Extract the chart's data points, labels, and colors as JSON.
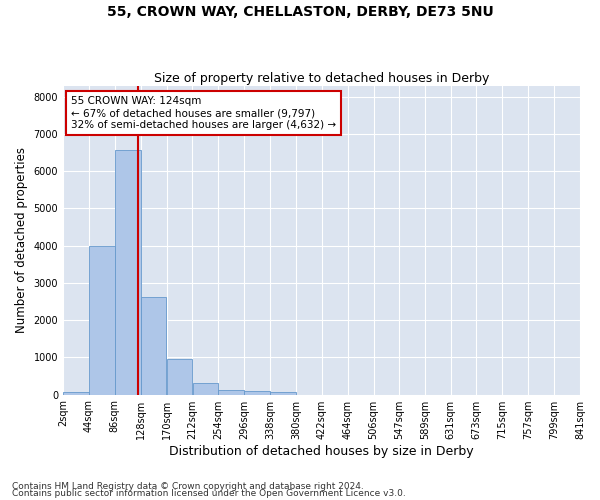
{
  "title": "55, CROWN WAY, CHELLASTON, DERBY, DE73 5NU",
  "subtitle": "Size of property relative to detached houses in Derby",
  "xlabel": "Distribution of detached houses by size in Derby",
  "ylabel": "Number of detached properties",
  "footnote1": "Contains HM Land Registry data © Crown copyright and database right 2024.",
  "footnote2": "Contains public sector information licensed under the Open Government Licence v3.0.",
  "bin_edges": [
    2,
    44,
    86,
    128,
    170,
    212,
    254,
    296,
    338,
    380,
    422,
    464,
    506,
    547,
    589,
    631,
    673,
    715,
    757,
    799,
    841
  ],
  "bin_labels": [
    "2sqm",
    "44sqm",
    "86sqm",
    "128sqm",
    "170sqm",
    "212sqm",
    "254sqm",
    "296sqm",
    "338sqm",
    "380sqm",
    "422sqm",
    "464sqm",
    "506sqm",
    "547sqm",
    "589sqm",
    "631sqm",
    "673sqm",
    "715sqm",
    "757sqm",
    "799sqm",
    "841sqm"
  ],
  "bar_heights": [
    70,
    3980,
    6580,
    2620,
    960,
    310,
    120,
    100,
    75,
    0,
    0,
    0,
    0,
    0,
    0,
    0,
    0,
    0,
    0,
    0
  ],
  "bar_color": "#aec6e8",
  "bar_edgecolor": "#6699cc",
  "property_size": 124,
  "property_line_color": "#cc0000",
  "annotation_box_color": "#cc0000",
  "annotation_line1": "55 CROWN WAY: 124sqm",
  "annotation_line2": "← 67% of detached houses are smaller (9,797)",
  "annotation_line3": "32% of semi-detached houses are larger (4,632) →",
  "ylim": [
    0,
    8300
  ],
  "yticks": [
    0,
    1000,
    2000,
    3000,
    4000,
    5000,
    6000,
    7000,
    8000
  ],
  "bg_color": "#dce4f0",
  "grid_color": "#ffffff",
  "fig_bg_color": "#ffffff",
  "title_fontsize": 10,
  "subtitle_fontsize": 9,
  "axis_label_fontsize": 8.5,
  "tick_fontsize": 7,
  "annotation_fontsize": 7.5,
  "footnote_fontsize": 6.5
}
